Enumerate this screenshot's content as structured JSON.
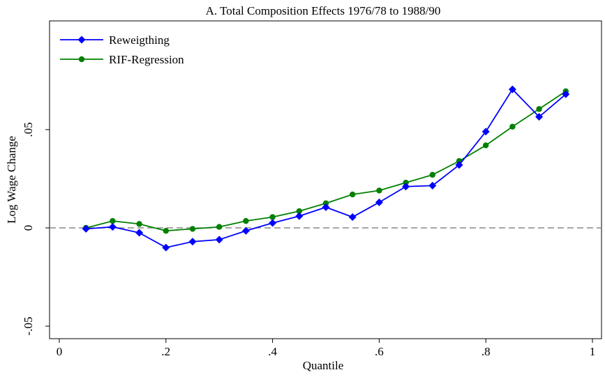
{
  "chart_data": {
    "type": "line",
    "title": "A. Total Composition Effects 1976/78 to 1988/90",
    "xlabel": "Quantile",
    "ylabel": "Log Wage Change",
    "xlim": [
      0,
      1
    ],
    "ylim": [
      -0.05,
      0.1
    ],
    "x_ticks": [
      0,
      0.2,
      0.4,
      0.6,
      0.8,
      1
    ],
    "x_tick_labels": [
      "0",
      ".2",
      ".4",
      ".6",
      ".8",
      "1"
    ],
    "y_ticks": [
      -0.05,
      0,
      0.05
    ],
    "y_tick_labels": [
      "-.05",
      "0",
      ".05"
    ],
    "reference_line": {
      "y": 0,
      "style": "dashed",
      "color": "#888888"
    },
    "grid": false,
    "legend": {
      "position": "top-left"
    },
    "x": [
      0.05,
      0.1,
      0.15,
      0.2,
      0.25,
      0.3,
      0.35,
      0.4,
      0.45,
      0.5,
      0.55,
      0.6,
      0.65,
      0.7,
      0.75,
      0.8,
      0.85,
      0.9,
      0.95
    ],
    "series": [
      {
        "name": "Reweigthing",
        "color": "#0000ff",
        "marker": "diamond",
        "values": [
          -0.0005,
          0.0005,
          -0.0025,
          -0.01,
          -0.007,
          -0.006,
          -0.0015,
          0.0025,
          0.006,
          0.0105,
          0.0055,
          0.013,
          0.021,
          0.0215,
          0.032,
          0.049,
          0.0705,
          0.0565,
          0.068
        ]
      },
      {
        "name": "RIF-Regression",
        "color": "#008000",
        "marker": "circle",
        "values": [
          0.0,
          0.0035,
          0.002,
          -0.0015,
          -0.0005,
          0.0005,
          0.0035,
          0.0055,
          0.0085,
          0.0125,
          0.017,
          0.019,
          0.023,
          0.027,
          0.034,
          0.042,
          0.0515,
          0.0605,
          0.0695
        ]
      }
    ]
  }
}
